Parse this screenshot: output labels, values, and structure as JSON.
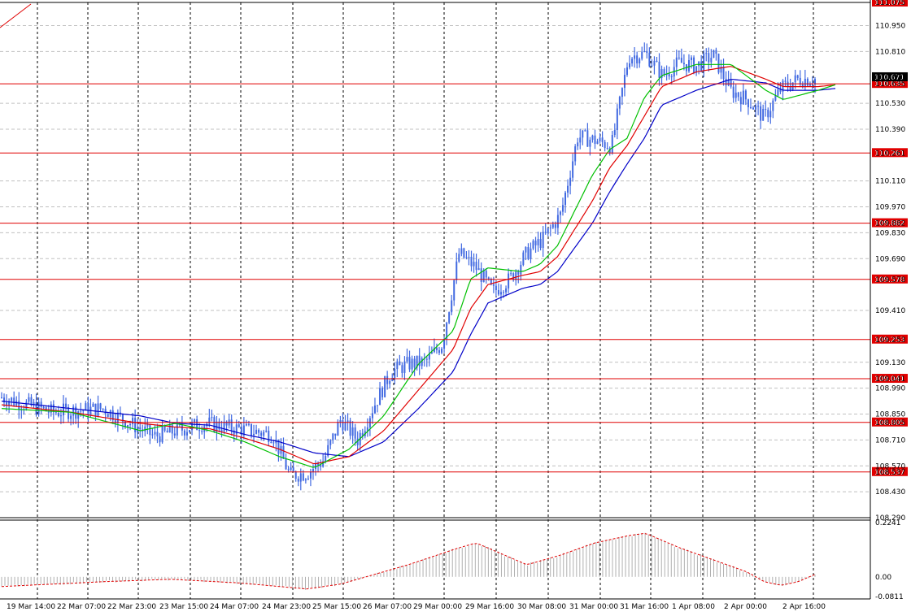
{
  "colors": {
    "background": "#ffffff",
    "grid": "#c0c0c0",
    "candle": "#4169e1",
    "level_line": "#e00000",
    "level_label_bg": "#e00000",
    "ma_fast": "#00c000",
    "ma_mid": "#e00000",
    "ma_slow": "#0000c8",
    "osc_bars": "#b0b0b0",
    "osc_signal": "#e00000",
    "current_price_bg": "#000000"
  },
  "chart_data": {
    "type": "candlestick",
    "ylim": [
      108.29,
      111.075
    ],
    "price_ticks": [
      "111.075",
      "110.950",
      "110.810",
      "110.671",
      "110.635",
      "110.530",
      "110.390",
      "110.261",
      "110.110",
      "109.970",
      "109.882",
      "109.830",
      "109.690",
      "109.578",
      "109.410",
      "109.253",
      "109.130",
      "109.041",
      "108.990",
      "108.850",
      "108.805",
      "108.710",
      "108.570",
      "108.537",
      "108.430",
      "108.290"
    ],
    "time_labels": [
      "19 Mar 14:00",
      "22 Mar 07:00",
      "22 Mar 23:00",
      "23 Mar 15:00",
      "24 Mar 07:00",
      "24 Mar 23:00",
      "25 Mar 15:00",
      "26 Mar 07:00",
      "29 Mar 00:00",
      "29 Mar 16:00",
      "30 Mar 08:00",
      "31 Mar 00:00",
      "31 Mar 16:00",
      "1 Apr 08:00",
      "2 Apr 00:00",
      "2 Apr 16:00"
    ],
    "levels": [
      111.075,
      110.635,
      110.261,
      109.882,
      109.578,
      109.253,
      109.041,
      108.805,
      108.537
    ],
    "level_labels": [
      "111.075",
      "110.635",
      "110.261",
      "109.882",
      "109.578",
      "109.253",
      "109.041",
      "108.805",
      "108.537"
    ],
    "current_price": "110.671",
    "close_anchors": [
      [
        0,
        108.94
      ],
      [
        3,
        108.86
      ],
      [
        6,
        108.88
      ],
      [
        9,
        108.73
      ],
      [
        12,
        108.8
      ],
      [
        14,
        108.77
      ],
      [
        16,
        108.74
      ],
      [
        17,
        108.52
      ],
      [
        18,
        108.53
      ],
      [
        19,
        108.6
      ],
      [
        20,
        108.82
      ],
      [
        21,
        108.71
      ],
      [
        22,
        108.9
      ],
      [
        23,
        109.08
      ],
      [
        24,
        109.12
      ],
      [
        25,
        109.13
      ],
      [
        26,
        109.23
      ],
      [
        27,
        109.72
      ],
      [
        28,
        109.64
      ],
      [
        29,
        109.51
      ],
      [
        30,
        109.58
      ],
      [
        31,
        109.72
      ],
      [
        32,
        109.8
      ],
      [
        33,
        109.93
      ],
      [
        34,
        110.35
      ],
      [
        35,
        110.33
      ],
      [
        36,
        110.3
      ],
      [
        37,
        110.78
      ],
      [
        38,
        110.8
      ],
      [
        39,
        110.68
      ],
      [
        40,
        110.75
      ],
      [
        41,
        110.73
      ],
      [
        42,
        110.79
      ],
      [
        43,
        110.6
      ],
      [
        44,
        110.55
      ],
      [
        45,
        110.45
      ],
      [
        46,
        110.61
      ],
      [
        47,
        110.66
      ],
      [
        48,
        110.66
      ]
    ],
    "ma_fast": [
      [
        0,
        108.88
      ],
      [
        4,
        108.86
      ],
      [
        8,
        108.76
      ],
      [
        10,
        108.8
      ],
      [
        12,
        108.76
      ],
      [
        14,
        108.7
      ],
      [
        16,
        108.62
      ],
      [
        18,
        108.56
      ],
      [
        20,
        108.66
      ],
      [
        22,
        108.84
      ],
      [
        24,
        109.12
      ],
      [
        26,
        109.3
      ],
      [
        27,
        109.58
      ],
      [
        28,
        109.64
      ],
      [
        30,
        109.62
      ],
      [
        31,
        109.66
      ],
      [
        32,
        109.76
      ],
      [
        34,
        110.14
      ],
      [
        35,
        110.28
      ],
      [
        36,
        110.34
      ],
      [
        37,
        110.56
      ],
      [
        38,
        110.68
      ],
      [
        40,
        110.74
      ],
      [
        42,
        110.74
      ],
      [
        44,
        110.6
      ],
      [
        45,
        110.55
      ],
      [
        47,
        110.6
      ],
      [
        48,
        110.63
      ]
    ],
    "ma_mid": [
      [
        0,
        108.9
      ],
      [
        4,
        108.86
      ],
      [
        8,
        108.8
      ],
      [
        10,
        108.78
      ],
      [
        12,
        108.77
      ],
      [
        14,
        108.72
      ],
      [
        16,
        108.66
      ],
      [
        18,
        108.58
      ],
      [
        20,
        108.62
      ],
      [
        22,
        108.76
      ],
      [
        24,
        108.98
      ],
      [
        26,
        109.2
      ],
      [
        27,
        109.42
      ],
      [
        28,
        109.55
      ],
      [
        30,
        109.6
      ],
      [
        31,
        109.62
      ],
      [
        32,
        109.7
      ],
      [
        34,
        110.0
      ],
      [
        35,
        110.18
      ],
      [
        36,
        110.3
      ],
      [
        37,
        110.46
      ],
      [
        38,
        110.62
      ],
      [
        40,
        110.7
      ],
      [
        42,
        110.73
      ],
      [
        44,
        110.66
      ],
      [
        45,
        110.62
      ],
      [
        47,
        110.62
      ],
      [
        48,
        110.63
      ]
    ],
    "ma_slow": [
      [
        0,
        108.92
      ],
      [
        4,
        108.88
      ],
      [
        8,
        108.84
      ],
      [
        10,
        108.8
      ],
      [
        12,
        108.79
      ],
      [
        14,
        108.74
      ],
      [
        16,
        108.7
      ],
      [
        18,
        108.64
      ],
      [
        20,
        108.62
      ],
      [
        22,
        108.7
      ],
      [
        24,
        108.88
      ],
      [
        26,
        109.08
      ],
      [
        27,
        109.28
      ],
      [
        28,
        109.45
      ],
      [
        30,
        109.53
      ],
      [
        31,
        109.55
      ],
      [
        32,
        109.62
      ],
      [
        34,
        109.88
      ],
      [
        35,
        110.05
      ],
      [
        36,
        110.2
      ],
      [
        37,
        110.34
      ],
      [
        38,
        110.52
      ],
      [
        40,
        110.6
      ],
      [
        42,
        110.66
      ],
      [
        44,
        110.64
      ],
      [
        45,
        110.6
      ],
      [
        47,
        110.6
      ],
      [
        48,
        110.61
      ]
    ],
    "oscillator": {
      "ylim": [
        -0.0811,
        0.2241
      ],
      "ticks": [
        "0.2241",
        "0.00",
        "-0.0811"
      ],
      "signal": [
        [
          0,
          -0.04
        ],
        [
          6,
          -0.02
        ],
        [
          10,
          -0.01
        ],
        [
          14,
          -0.025
        ],
        [
          18,
          -0.05
        ],
        [
          20,
          -0.03
        ],
        [
          24,
          0.05
        ],
        [
          27,
          0.12
        ],
        [
          28,
          0.14
        ],
        [
          31,
          0.05
        ],
        [
          33,
          0.09
        ],
        [
          35,
          0.14
        ],
        [
          37,
          0.17
        ],
        [
          38,
          0.18
        ],
        [
          40,
          0.12
        ],
        [
          42,
          0.07
        ],
        [
          44,
          0.02
        ],
        [
          45,
          -0.02
        ],
        [
          46,
          -0.035
        ],
        [
          47,
          -0.02
        ],
        [
          48,
          0.01
        ]
      ]
    }
  }
}
